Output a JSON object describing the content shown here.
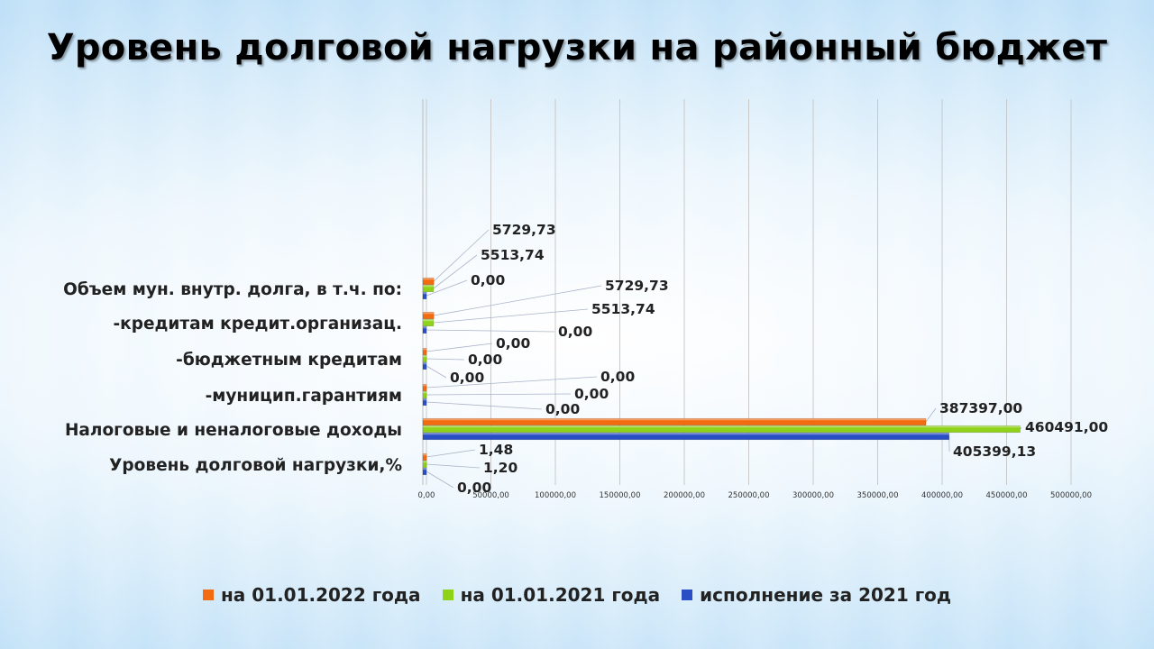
{
  "title": "Уровень долговой нагрузки на районный бюджет",
  "chart_data": {
    "type": "bar",
    "orientation": "horizontal",
    "categories": [
      "Объем мун. внутр. долга, в т.ч. по:",
      "-кредитам кредит.организац.",
      "-бюджетным кредитам",
      "-муницип.гарантиям",
      "Налоговые и неналоговые доходы",
      "Уровень долговой нагрузки,%"
    ],
    "series": [
      {
        "name": "на 01.01.2022 года",
        "color": "#f26b10",
        "values": [
          5729.73,
          5729.73,
          0,
          0,
          387397,
          1.48
        ],
        "labels": [
          "5729,73",
          "5729,73",
          "0,00",
          "0,00",
          "387397,00",
          "1,48"
        ]
      },
      {
        "name": "на 01.01.2021 года",
        "color": "#8fd21a",
        "values": [
          5513.74,
          5513.74,
          0,
          0,
          460491,
          1.2
        ],
        "labels": [
          "5513,74",
          "5513,74",
          "0,00",
          "0,00",
          "460491,00",
          "1,20"
        ]
      },
      {
        "name": "исполнение за 2021 год",
        "color": "#2a4fc4",
        "values": [
          0,
          0,
          0,
          0,
          405399.13,
          0
        ],
        "labels": [
          "0,00",
          "0,00",
          "0,00",
          "0,00",
          "405399,13",
          "0,00"
        ]
      }
    ],
    "xlim": [
      0,
      500000
    ],
    "xticks": [
      0,
      50000,
      100000,
      150000,
      200000,
      250000,
      300000,
      350000,
      400000,
      450000,
      500000
    ],
    "xtick_labels": [
      "0,00",
      "50000,00",
      "100000,00",
      "150000,00",
      "200000,00",
      "250000,00",
      "300000,00",
      "350000,00",
      "400000,00",
      "450000,00",
      "500000,00"
    ],
    "grid": true,
    "legend_position": "bottom"
  }
}
